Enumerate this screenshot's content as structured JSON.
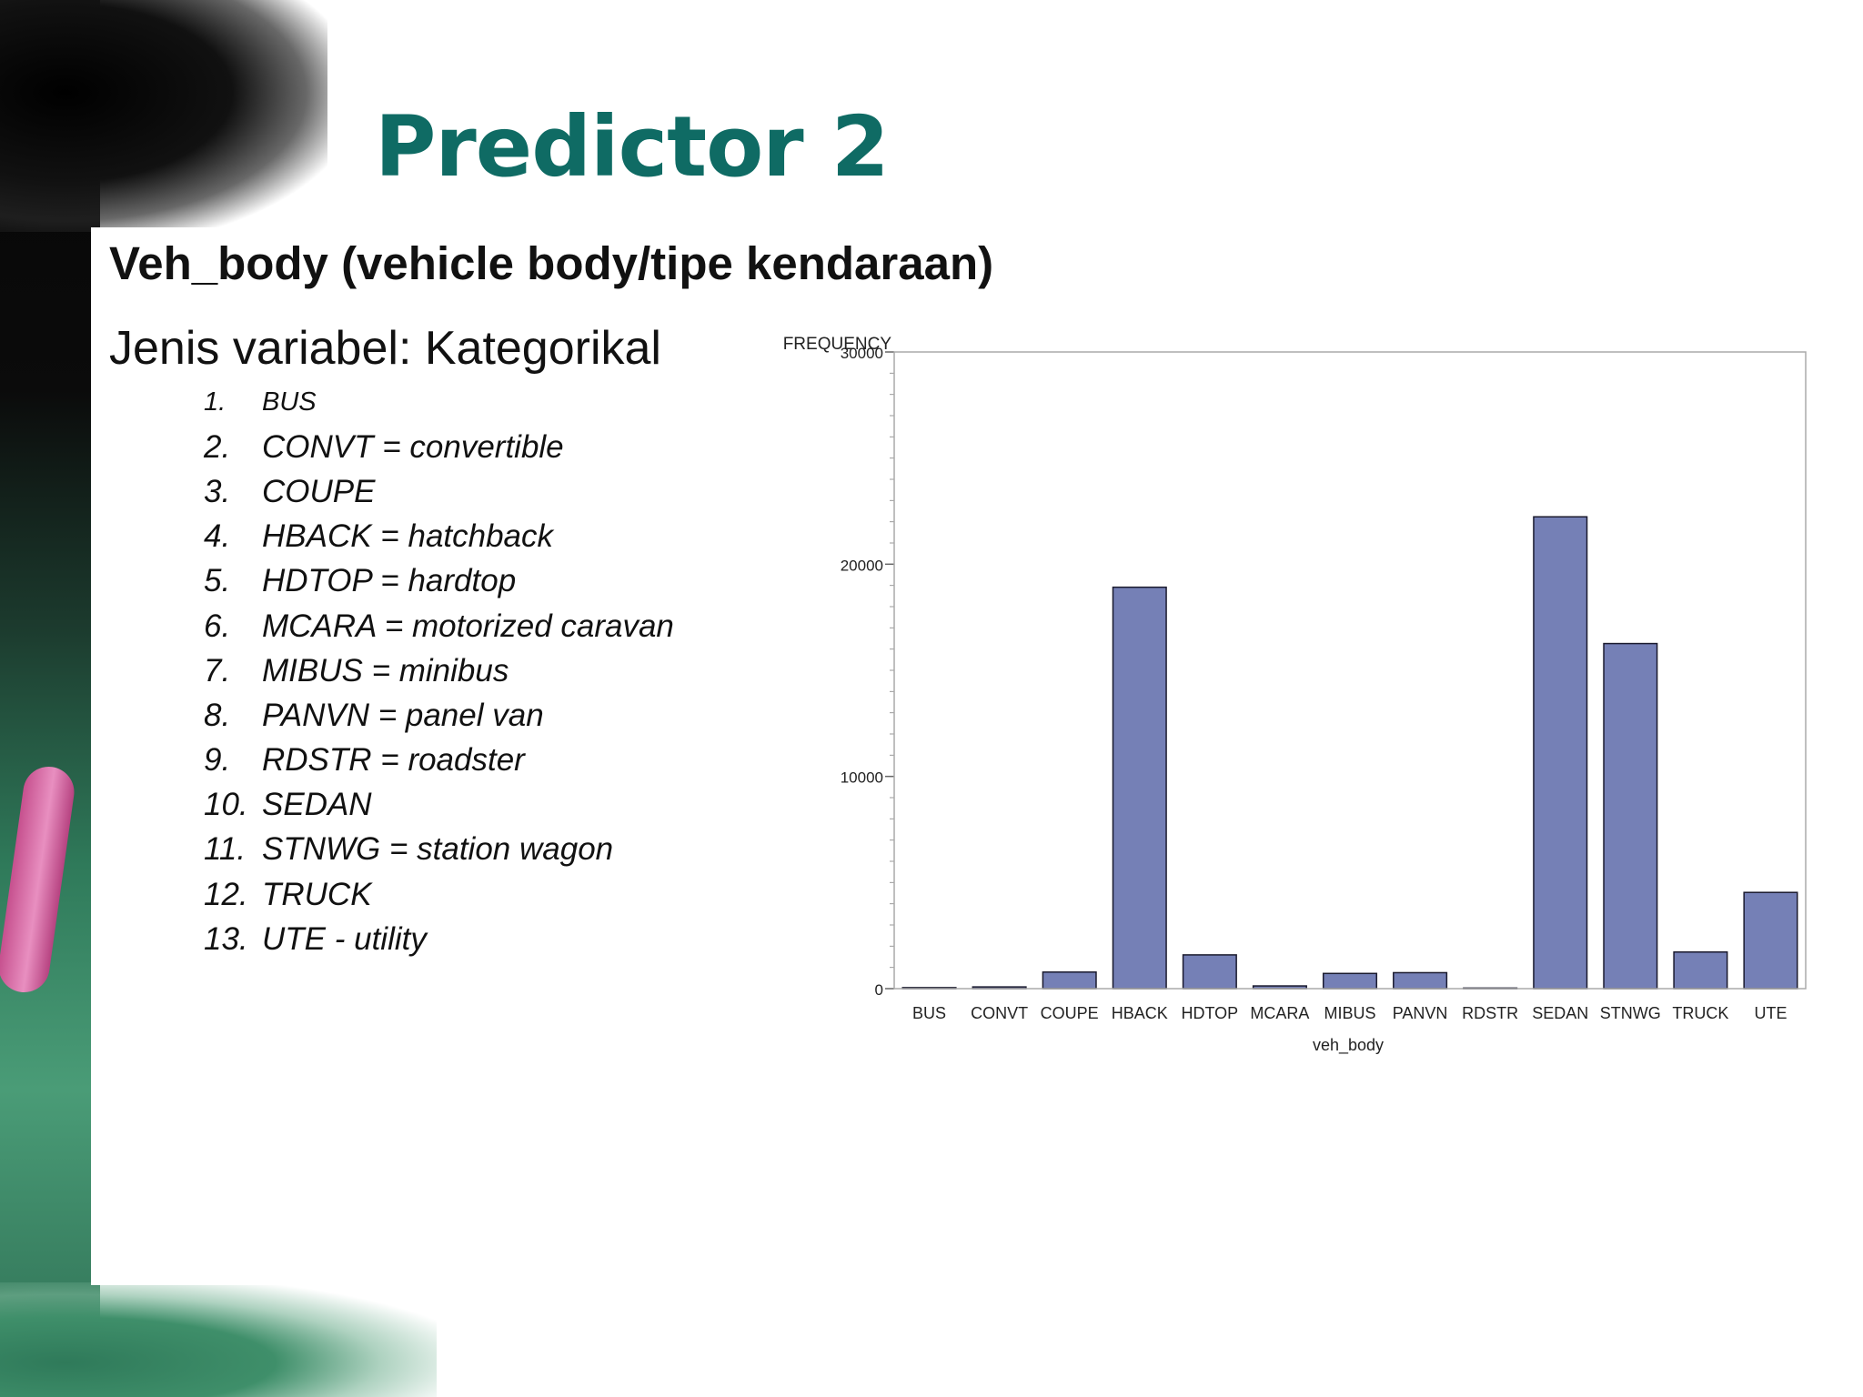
{
  "slide": {
    "title": "Predictor 2",
    "subtitle": "Veh_body (vehicle body/tipe kendaraan)",
    "variable_type": "Jenis variabel: Kategorikal",
    "categories": [
      {
        "num": "1.",
        "text": "BUS"
      },
      {
        "num": "2.",
        "text": "CONVT = convertible"
      },
      {
        "num": "3.",
        "text": "COUPE"
      },
      {
        "num": "4.",
        "text": "HBACK = hatchback"
      },
      {
        "num": "5.",
        "text": "HDTOP = hardtop"
      },
      {
        "num": "6.",
        "text": "MCARA = motorized caravan"
      },
      {
        "num": "7.",
        "text": "MIBUS = minibus"
      },
      {
        "num": "8.",
        "text": "PANVN = panel van"
      },
      {
        "num": "9.",
        "text": "RDSTR = roadster"
      },
      {
        "num": "10.",
        "text": "SEDAN"
      },
      {
        "num": "11.",
        "text": "STNWG = station wagon"
      },
      {
        "num": "12.",
        "text": "TRUCK"
      },
      {
        "num": "13.",
        "text": "UTE - utility"
      }
    ]
  },
  "colors": {
    "title": "#0f6b64",
    "bar_fill": "#7580b6",
    "bar_stroke": "#1a1a2e"
  },
  "chart_data": {
    "type": "bar",
    "title": "",
    "xlabel": "veh_body",
    "ylabel": "FREQUENCY",
    "categories": [
      "BUS",
      "CONVT",
      "COUPE",
      "HBACK",
      "HDTOP",
      "MCARA",
      "MIBUS",
      "PANVN",
      "RDSTR",
      "SEDAN",
      "STNWG",
      "TRUCK",
      "UTE"
    ],
    "values": [
      48,
      81,
      780,
      18915,
      1590,
      127,
      716,
      752,
      27,
      22233,
      16261,
      1725,
      4534
    ],
    "ylim": [
      0,
      30000
    ],
    "yticks": [
      0,
      10000,
      20000,
      30000
    ],
    "ytick_labels": [
      "0",
      "10000",
      "20000",
      "30000"
    ],
    "minor_tick_step": 1000,
    "grid": false,
    "legend": "none"
  }
}
